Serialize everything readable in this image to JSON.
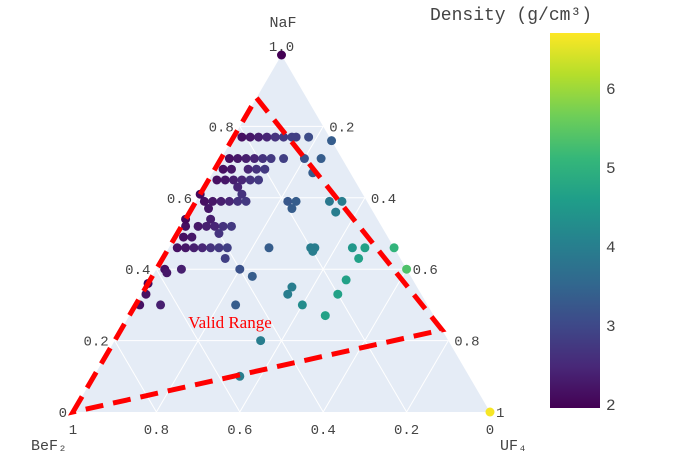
{
  "chart_data": {
    "type": "scatter",
    "subtype": "ternary",
    "axes": {
      "a": {
        "title": "NaF",
        "ticks": [
          "0",
          "0.2",
          "0.4",
          "0.6",
          "0.8",
          "1.0"
        ],
        "values": [
          0,
          0.2,
          0.4,
          0.6,
          0.8,
          1.0
        ]
      },
      "b": {
        "title": "BeF₂",
        "ticks": [
          "1",
          "0.8",
          "0.6",
          "0.4",
          "0.2",
          "0"
        ],
        "values": [
          1,
          0.8,
          0.6,
          0.4,
          0.2,
          0
        ]
      },
      "c": {
        "title": "UF₄",
        "ticks": [
          "0.2",
          "0.4",
          "0.6",
          "0.8",
          "1"
        ],
        "values": [
          0.2,
          0.4,
          0.6,
          0.8,
          1
        ]
      }
    },
    "grid": true,
    "columns": [
      "NaF",
      "BeF2",
      "UF4",
      "density"
    ],
    "points": [
      [
        0.77,
        0.21,
        0.02,
        2.2
      ],
      [
        0.77,
        0.19,
        0.04,
        2.3
      ],
      [
        0.77,
        0.17,
        0.06,
        2.4
      ],
      [
        0.77,
        0.15,
        0.08,
        2.5
      ],
      [
        0.77,
        0.13,
        0.1,
        2.7
      ],
      [
        0.77,
        0.11,
        0.12,
        2.8
      ],
      [
        0.77,
        0.09,
        0.14,
        2.9
      ],
      [
        0.77,
        0.08,
        0.15,
        2.9
      ],
      [
        0.77,
        0.05,
        0.18,
        3.1
      ],
      [
        0.76,
        0.0,
        0.24,
        3.4
      ],
      [
        0.71,
        0.27,
        0.02,
        2.2
      ],
      [
        0.71,
        0.25,
        0.04,
        2.3
      ],
      [
        0.71,
        0.23,
        0.06,
        2.4
      ],
      [
        0.71,
        0.21,
        0.08,
        2.5
      ],
      [
        0.71,
        0.19,
        0.1,
        2.7
      ],
      [
        0.71,
        0.17,
        0.12,
        2.8
      ],
      [
        0.71,
        0.14,
        0.15,
        2.9
      ],
      [
        0.71,
        0.09,
        0.2,
        3.2
      ],
      [
        0.71,
        0.05,
        0.24,
        3.4
      ],
      [
        0.67,
        0.09,
        0.24,
        3.4
      ],
      [
        0.68,
        0.3,
        0.02,
        2.2
      ],
      [
        0.68,
        0.28,
        0.04,
        2.3
      ],
      [
        0.68,
        0.24,
        0.08,
        2.5
      ],
      [
        0.68,
        0.22,
        0.1,
        2.7
      ],
      [
        0.68,
        0.2,
        0.12,
        2.8
      ],
      [
        0.65,
        0.33,
        0.02,
        2.2
      ],
      [
        0.65,
        0.31,
        0.04,
        2.3
      ],
      [
        0.65,
        0.29,
        0.06,
        2.4
      ],
      [
        0.65,
        0.27,
        0.08,
        2.5
      ],
      [
        0.65,
        0.25,
        0.1,
        2.7
      ],
      [
        0.65,
        0.23,
        0.12,
        2.8
      ],
      [
        0.63,
        0.29,
        0.08,
        2.5
      ],
      [
        0.61,
        0.29,
        0.1,
        2.7
      ],
      [
        0.61,
        0.39,
        0.0,
        2.1
      ],
      [
        0.59,
        0.39,
        0.02,
        2.2
      ],
      [
        0.59,
        0.37,
        0.04,
        2.3
      ],
      [
        0.59,
        0.35,
        0.06,
        2.4
      ],
      [
        0.59,
        0.33,
        0.08,
        2.5
      ],
      [
        0.59,
        0.31,
        0.1,
        2.7
      ],
      [
        0.59,
        0.29,
        0.12,
        2.8
      ],
      [
        0.59,
        0.19,
        0.22,
        3.3
      ],
      [
        0.59,
        0.17,
        0.24,
        3.4
      ],
      [
        0.57,
        0.19,
        0.24,
        3.4
      ],
      [
        0.59,
        0.09,
        0.32,
        3.9
      ],
      [
        0.59,
        0.06,
        0.35,
        4.0
      ],
      [
        0.56,
        0.09,
        0.35,
        4.0
      ],
      [
        0.57,
        0.39,
        0.04,
        2.3
      ],
      [
        0.54,
        0.4,
        0.06,
        2.4
      ],
      [
        0.52,
        0.47,
        0.01,
        2.2
      ],
      [
        0.52,
        0.44,
        0.04,
        2.3
      ],
      [
        0.52,
        0.42,
        0.06,
        2.4
      ],
      [
        0.52,
        0.4,
        0.08,
        2.5
      ],
      [
        0.52,
        0.38,
        0.1,
        2.7
      ],
      [
        0.52,
        0.36,
        0.12,
        2.8
      ],
      [
        0.54,
        0.46,
        0.0,
        2.1
      ],
      [
        0.5,
        0.4,
        0.1,
        2.7
      ],
      [
        0.49,
        0.49,
        0.02,
        2.2
      ],
      [
        0.49,
        0.47,
        0.04,
        2.3
      ],
      [
        0.46,
        0.52,
        0.02,
        2.2
      ],
      [
        0.46,
        0.5,
        0.04,
        2.3
      ],
      [
        0.46,
        0.48,
        0.06,
        2.4
      ],
      [
        0.46,
        0.46,
        0.08,
        2.5
      ],
      [
        0.46,
        0.44,
        0.1,
        2.7
      ],
      [
        0.46,
        0.42,
        0.12,
        2.8
      ],
      [
        0.46,
        0.4,
        0.14,
        2.9
      ],
      [
        0.46,
        0.3,
        0.24,
        3.4
      ],
      [
        0.46,
        0.2,
        0.34,
        4.0
      ],
      [
        0.46,
        0.19,
        0.35,
        4.0
      ],
      [
        0.45,
        0.2,
        0.35,
        4.0
      ],
      [
        0.46,
        0.1,
        0.44,
        4.5
      ],
      [
        0.46,
        0.07,
        0.47,
        4.7
      ],
      [
        0.43,
        0.1,
        0.47,
        4.7
      ],
      [
        0.46,
        0.0,
        0.54,
        5.1
      ],
      [
        0.43,
        0.42,
        0.15,
        2.9
      ],
      [
        0.4,
        0.58,
        0.02,
        2.2
      ],
      [
        0.39,
        0.58,
        0.03,
        2.3
      ],
      [
        0.4,
        0.54,
        0.06,
        2.4
      ],
      [
        0.4,
        0.4,
        0.2,
        3.2
      ],
      [
        0.38,
        0.38,
        0.24,
        3.4
      ],
      [
        0.35,
        0.3,
        0.35,
        4.0
      ],
      [
        0.33,
        0.32,
        0.35,
        4.0
      ],
      [
        0.3,
        0.3,
        0.4,
        4.3
      ],
      [
        0.3,
        0.46,
        0.24,
        3.4
      ],
      [
        0.3,
        0.64,
        0.06,
        2.4
      ],
      [
        0.37,
        0.16,
        0.47,
        4.7
      ],
      [
        0.33,
        0.2,
        0.47,
        4.7
      ],
      [
        0.27,
        0.26,
        0.47,
        4.7
      ],
      [
        0.2,
        0.45,
        0.35,
        4.0
      ],
      [
        0.1,
        0.55,
        0.35,
        4.0
      ],
      [
        0.4,
        0.0,
        0.6,
        5.4
      ],
      [
        0.36,
        0.64,
        0.0,
        2.1
      ],
      [
        0.33,
        0.66,
        0.01,
        2.2
      ],
      [
        0.3,
        0.69,
        0.01,
        2.2
      ],
      [
        1.0,
        0.0,
        0.0,
        2.0
      ],
      [
        0.0,
        0.0,
        1.0,
        6.7
      ]
    ],
    "valid_range": {
      "label": "Valid Range",
      "color": "#ff0000",
      "vertices": [
        [
          0.0,
          1.0,
          0.0
        ],
        [
          0.88,
          0.12,
          0.0
        ],
        [
          0.23,
          0.0,
          0.77
        ]
      ]
    },
    "colorbar": {
      "title": "Density (g/cm³)",
      "range": [
        2,
        6.75
      ],
      "ticks": [
        "2",
        "3",
        "4",
        "5",
        "6"
      ],
      "tick_values": [
        2,
        3,
        4,
        5,
        6
      ],
      "colorscale": "Viridis",
      "stops": [
        "#440154",
        "#482878",
        "#3e4989",
        "#31688e",
        "#26828e",
        "#1f9e89",
        "#35b779",
        "#6ece58",
        "#b5de2b",
        "#fde725"
      ]
    },
    "background": "#e5ecf6"
  }
}
